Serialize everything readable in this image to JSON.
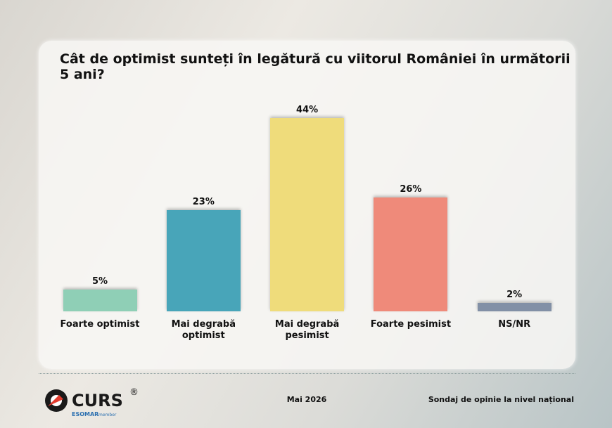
{
  "chart_data": {
    "type": "bar",
    "title": "Cât de optimist sunteți în legătură cu viitorul României în următorii 5 ani?",
    "categories": [
      "Foarte optimist",
      "Mai degrabă optimist",
      "Mai degrabă pesimist",
      "Foarte pesimist",
      "NS/NR"
    ],
    "values": [
      5,
      23,
      44,
      26,
      2
    ],
    "value_labels": [
      "5%",
      "23%",
      "44%",
      "26%",
      "2%"
    ],
    "colors": [
      "#8fcfb6",
      "#48a5b9",
      "#efdc7b",
      "#ef8a7a",
      "#8290a6"
    ]
  },
  "footer": {
    "logo": "CURS",
    "registered": "®",
    "esomar": "ESOMAR",
    "member": "member",
    "date": "Mai 2026",
    "note": "Sondaj de opinie la nivel național"
  }
}
